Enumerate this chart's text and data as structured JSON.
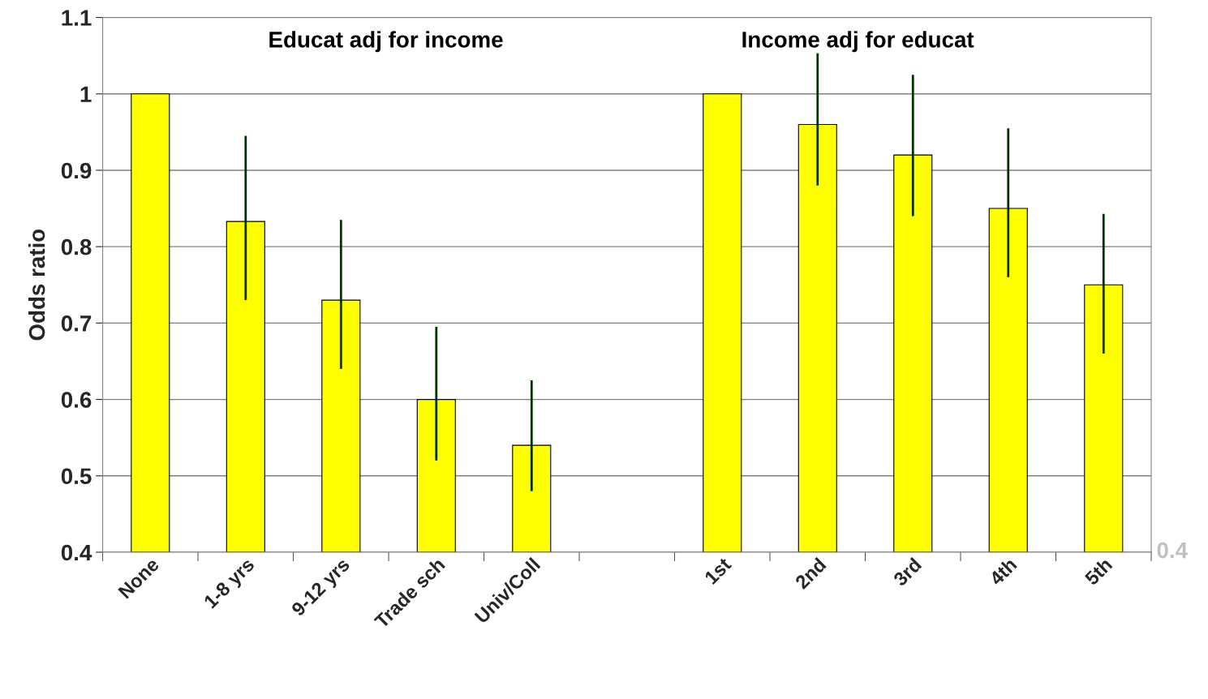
{
  "chart_data": {
    "type": "bar",
    "ylabel": "Odds ratio",
    "categories": [
      "None",
      "1-8 yrs",
      "9-12 yrs",
      "Trade sch",
      "Univ/Coll",
      null,
      "1st",
      "2nd",
      "3rd",
      "4th",
      "5th"
    ],
    "values": [
      1.0,
      0.833,
      0.73,
      0.6,
      0.54,
      null,
      1.0,
      0.96,
      0.92,
      0.85,
      0.75
    ],
    "errors": [
      null,
      [
        0.73,
        0.945
      ],
      [
        0.64,
        0.835
      ],
      [
        0.52,
        0.695
      ],
      [
        0.48,
        0.625
      ],
      null,
      null,
      [
        0.88,
        1.053
      ],
      [
        0.84,
        1.025
      ],
      [
        0.76,
        0.955
      ],
      [
        0.66,
        0.843
      ]
    ],
    "color": "#ffff00",
    "ylim": [
      0.4,
      1.1
    ],
    "yticks": [
      0.4,
      0.5,
      0.6,
      0.7,
      0.8,
      0.9,
      {
        "value": 1.0,
        "label": "1"
      },
      1.1
    ],
    "grid": "y",
    "annotations": [
      "Educat adj for income",
      "Income adj for educat",
      "0.4"
    ]
  }
}
